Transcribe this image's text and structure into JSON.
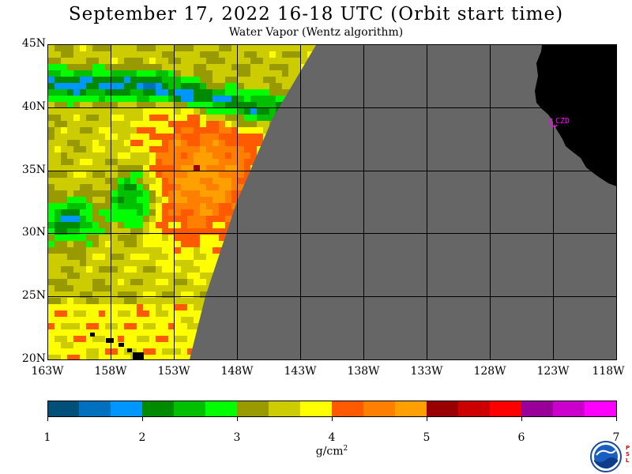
{
  "title": "September 17, 2022  16-18 UTC  (Orbit start time)",
  "subtitle": "Water Vapor (Wentz algorithm)",
  "map": {
    "lon_range": [
      -163,
      -118
    ],
    "lat_range": [
      20,
      45
    ],
    "lat_labels": [
      "45N",
      "40N",
      "35N",
      "30N",
      "25N",
      "20N"
    ],
    "lon_labels": [
      "163W",
      "158W",
      "153W",
      "148W",
      "143W",
      "138W",
      "133W",
      "128W",
      "123W",
      "118W"
    ],
    "station_label": "CZD",
    "colors": {
      "no_data": "#666666",
      "land": "#000000",
      "grid": "#000000",
      "station": "#ff00ff"
    }
  },
  "colorbar": {
    "tick_labels": [
      "1",
      "2",
      "3",
      "4",
      "5",
      "6",
      "7"
    ],
    "units": "g/cm",
    "units_sup": "2",
    "colors": [
      "#00507a",
      "#0070bf",
      "#0096ff",
      "#008a00",
      "#00c000",
      "#00ff00",
      "#999900",
      "#cccc00",
      "#ffff00",
      "#ff5a00",
      "#ff7f00",
      "#ffa000",
      "#990000",
      "#cc0000",
      "#ff0000",
      "#990099",
      "#cc00cc",
      "#ff00ff"
    ]
  },
  "logo": {
    "name": "NOAA",
    "side_text": "PSL"
  }
}
